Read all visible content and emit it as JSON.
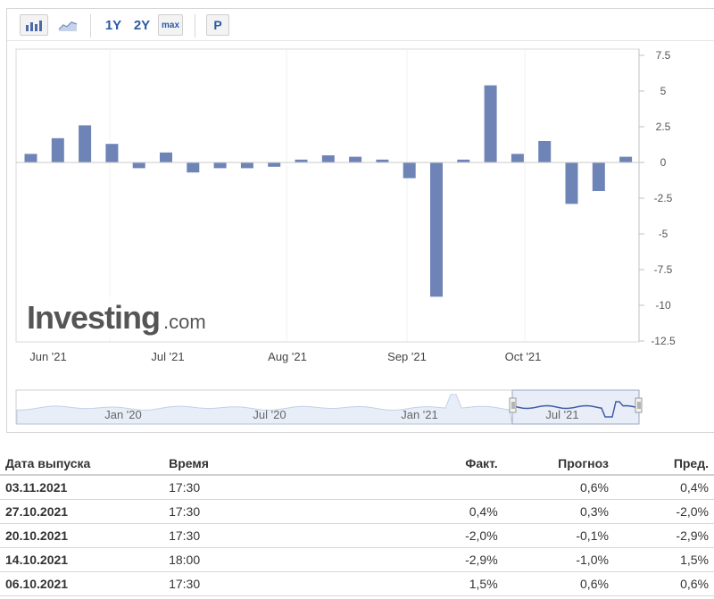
{
  "toolbar": {
    "bar_chart_icon": "bar-chart-icon",
    "line_chart_icon": "line-chart-icon",
    "btn_1y": "1Y",
    "btn_2y": "2Y",
    "btn_max": "max",
    "btn_p": "P"
  },
  "chart_data": {
    "type": "bar",
    "series_color": "#6e84b6",
    "y_ticks": [
      7.5,
      5,
      2.5,
      0,
      -2.5,
      -5,
      -7.5,
      -10,
      -12.5
    ],
    "y_tick_labels": [
      "7.5",
      "5",
      "2.5",
      "0",
      "-2.5",
      "-5",
      "-7.5",
      "-10",
      "-12.5"
    ],
    "ylim": [
      -12.5,
      7.5
    ],
    "x_tick_labels": [
      "Jun '21",
      "Jul '21",
      "Aug '21",
      "Sep '21",
      "Oct '21"
    ],
    "values": [
      0.6,
      1.7,
      2.6,
      1.3,
      -0.4,
      0.7,
      -0.7,
      -0.4,
      -0.4,
      -0.3,
      0.2,
      0.5,
      0.4,
      0.2,
      -1.1,
      -9.4,
      0.2,
      5.4,
      0.6,
      1.5,
      -2.9,
      -2.0,
      0.4
    ],
    "grid": true,
    "watermark": "Investing.com",
    "navigator": {
      "labels": [
        "Jan '20",
        "Jul '20",
        "Jan '21",
        "Jul '21"
      ]
    }
  },
  "table": {
    "headers": {
      "date": "Дата выпуска",
      "time": "Время",
      "actual": "Факт.",
      "forecast": "Прогноз",
      "previous": "Пред."
    },
    "rows": [
      {
        "date": "03.11.2021",
        "time": "17:30",
        "actual": "",
        "forecast": "0,6%",
        "previous": "0,4%"
      },
      {
        "date": "27.10.2021",
        "time": "17:30",
        "actual": "0,4%",
        "forecast": "0,3%",
        "previous": "-2,0%"
      },
      {
        "date": "20.10.2021",
        "time": "17:30",
        "actual": "-2,0%",
        "forecast": "-0,1%",
        "previous": "-2,9%"
      },
      {
        "date": "14.10.2021",
        "time": "18:00",
        "actual": "-2,9%",
        "forecast": "-1,0%",
        "previous": "1,5%"
      },
      {
        "date": "06.10.2021",
        "time": "17:30",
        "actual": "1,5%",
        "forecast": "0,6%",
        "previous": "0,6%"
      }
    ]
  }
}
